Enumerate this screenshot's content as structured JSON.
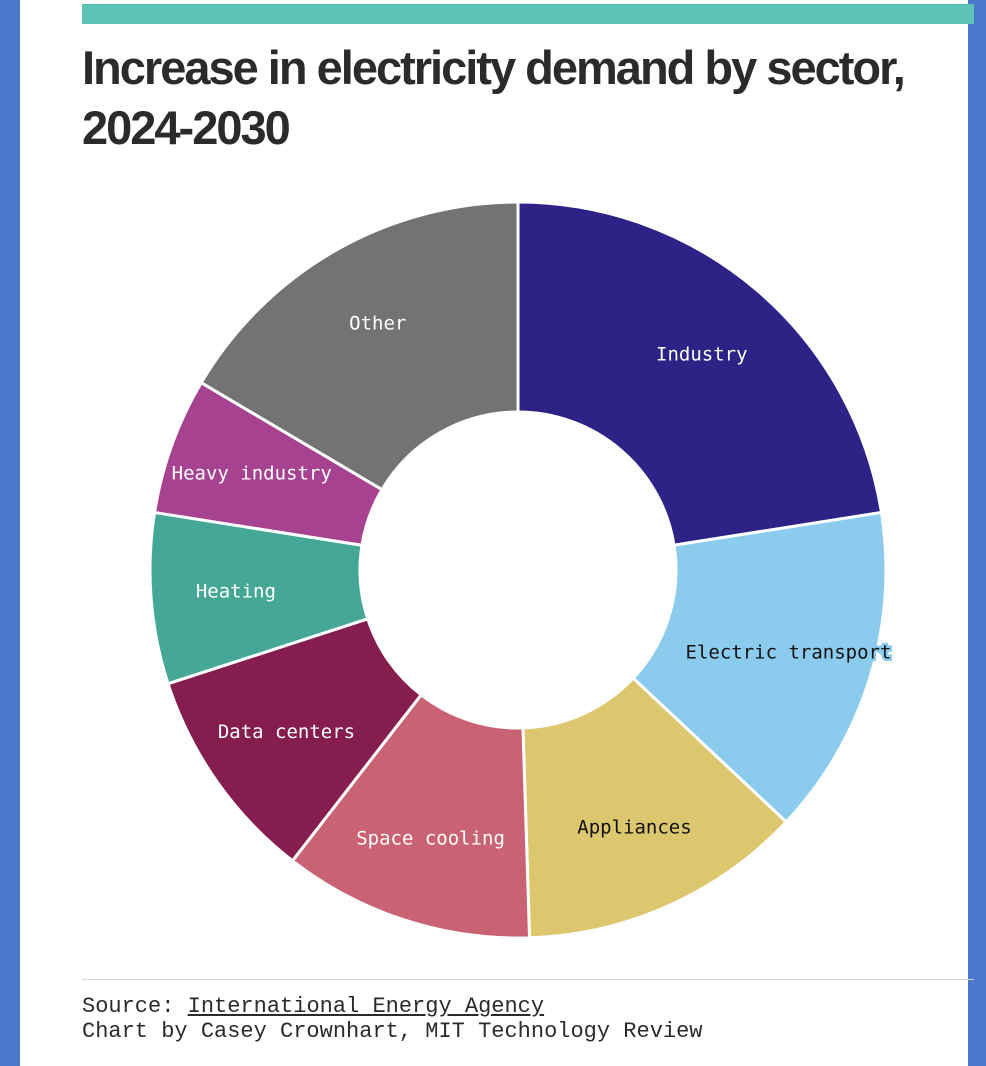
{
  "chart_data": {
    "type": "pie",
    "title": "Increase in electricity demand by sector, 2024-2030",
    "labels": [
      "Industry",
      "Electric transport",
      "Appliances",
      "Space cooling",
      "Data centers",
      "Heating",
      "Heavy industry",
      "Other"
    ],
    "values": [
      22.5,
      14.5,
      12.5,
      11.0,
      9.5,
      7.5,
      6.0,
      16.5
    ],
    "colors": [
      "#2e2287",
      "#8acbee",
      "#dcc66e",
      "#c96272",
      "#851d4f",
      "#45a896",
      "#a6428f",
      "#737373"
    ],
    "label_text_colors": [
      "#ffffff",
      "#111111",
      "#111111",
      "#ffffff",
      "#ffffff",
      "#ffffff",
      "#ffffff",
      "#ffffff"
    ],
    "label_halo_colors": [
      "#2e2287",
      "#8acbee",
      "#dcc66e",
      "#c96272",
      "#851d4f",
      "#45a896",
      "#a6428f",
      "#737373"
    ],
    "legend": "none"
  },
  "footer": {
    "source_prefix": "Source: ",
    "source_link": "International Energy Agency",
    "credit": "Chart by Casey Crownhart, MIT Technology Review"
  },
  "colors": {
    "accent_bar": "#5cc2b4",
    "page_background": "#4a76cc"
  }
}
